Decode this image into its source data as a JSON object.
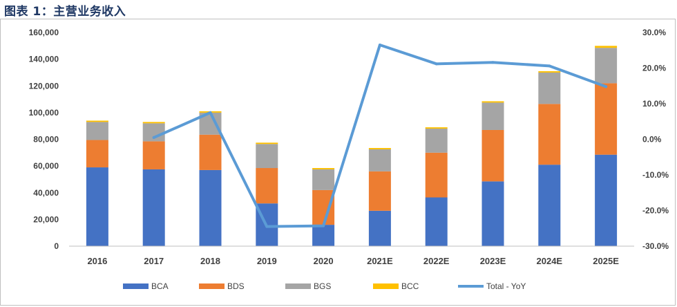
{
  "page_title": "图表 1：主营业务收入",
  "chart_data": {
    "type": "bar",
    "stacked": true,
    "categories": [
      "2016",
      "2017",
      "2018",
      "2019",
      "2020",
      "2021E",
      "2022E",
      "2023E",
      "2024E",
      "2025E"
    ],
    "series": [
      {
        "name": "BCA",
        "type": "bar",
        "axis": "left",
        "color": "#4472c4",
        "values": [
          59000,
          57500,
          57000,
          32000,
          16000,
          26500,
          36500,
          48500,
          61000,
          68500
        ]
      },
      {
        "name": "BDS",
        "type": "bar",
        "axis": "left",
        "color": "#ed7d31",
        "values": [
          20500,
          21000,
          26500,
          26500,
          26000,
          29500,
          33500,
          38500,
          45500,
          53500
        ]
      },
      {
        "name": "BGS",
        "type": "bar",
        "axis": "left",
        "color": "#a5a5a5",
        "values": [
          13500,
          13500,
          16500,
          18000,
          15500,
          16500,
          18000,
          20500,
          23500,
          26500
        ]
      },
      {
        "name": "BCC",
        "type": "bar",
        "axis": "left",
        "color": "#ffc000",
        "values": [
          1000,
          1000,
          1000,
          1000,
          1000,
          1000,
          1000,
          1000,
          1000,
          1500
        ]
      },
      {
        "name": "Total - YoY",
        "type": "line",
        "axis": "right",
        "color": "#5b9bd5",
        "values": [
          null,
          0.5,
          7.5,
          -24.5,
          -24.3,
          26.5,
          21.2,
          21.6,
          20.6,
          14.8
        ]
      }
    ],
    "left_axis": {
      "min": 0,
      "max": 160000,
      "step": 20000,
      "tick_labels": [
        "0",
        "20,000",
        "40,000",
        "60,000",
        "80,000",
        "100,000",
        "120,000",
        "140,000",
        "160,000"
      ]
    },
    "right_axis": {
      "min": -30,
      "max": 30,
      "step": 10,
      "unit": "%",
      "tick_labels": [
        "-30.0%",
        "-20.0%",
        "-10.0%",
        "0.0%",
        "10.0%",
        "20.0%",
        "30.0%"
      ]
    },
    "grid": false,
    "legend_position": "bottom"
  }
}
